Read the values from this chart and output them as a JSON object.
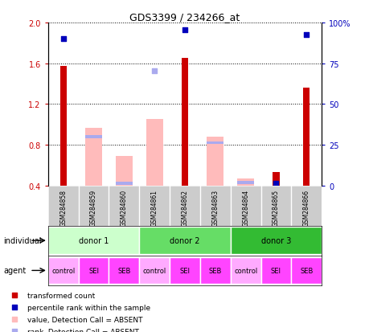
{
  "title": "GDS3399 / 234266_at",
  "samples": [
    "GSM284858",
    "GSM284859",
    "GSM284860",
    "GSM284861",
    "GSM284862",
    "GSM284863",
    "GSM284864",
    "GSM284865",
    "GSM284866"
  ],
  "red_bars": [
    1.57,
    null,
    null,
    null,
    1.65,
    null,
    null,
    0.53,
    1.36
  ],
  "pink_bars": [
    null,
    0.97,
    0.69,
    1.05,
    null,
    0.88,
    0.47,
    null,
    null
  ],
  "blue_squares": [
    1.84,
    null,
    null,
    null,
    1.93,
    null,
    null,
    null,
    1.88
  ],
  "light_blue_squares": [
    null,
    null,
    null,
    1.53,
    null,
    null,
    null,
    null,
    null
  ],
  "blue_rank_absent": [
    null,
    0.88,
    0.42,
    null,
    null,
    0.82,
    0.43,
    0.42,
    null
  ],
  "ylim_left": [
    0.4,
    2.0
  ],
  "ylim_right": [
    0,
    100
  ],
  "yticks_left": [
    0.4,
    0.8,
    1.2,
    1.6,
    2.0
  ],
  "yticks_right": [
    0,
    25,
    50,
    75,
    100
  ],
  "ytick_labels_right": [
    "0",
    "25",
    "50",
    "75",
    "100%"
  ],
  "donors": [
    {
      "label": "donor 1",
      "cols": [
        0,
        1,
        2
      ],
      "color": "#ccffcc"
    },
    {
      "label": "donor 2",
      "cols": [
        3,
        4,
        5
      ],
      "color": "#66dd66"
    },
    {
      "label": "donor 3",
      "cols": [
        6,
        7,
        8
      ],
      "color": "#22cc22"
    }
  ],
  "agents": [
    "control",
    "SEI",
    "SEB",
    "control",
    "SEI",
    "SEB",
    "control",
    "SEI",
    "SEB"
  ],
  "agent_control_color": "#ffaaff",
  "agent_sei_seb_color": "#ff44ff",
  "red_color": "#cc0000",
  "pink_color": "#ffbbbb",
  "blue_color": "#0000bb",
  "light_blue_color": "#aaaaee",
  "bg_color": "#cccccc",
  "tick_fontsize": 7,
  "legend_items": [
    {
      "label": "transformed count",
      "color": "#cc0000"
    },
    {
      "label": "percentile rank within the sample",
      "color": "#0000bb"
    },
    {
      "label": "value, Detection Call = ABSENT",
      "color": "#ffbbbb"
    },
    {
      "label": "rank, Detection Call = ABSENT",
      "color": "#aaaaee"
    }
  ]
}
